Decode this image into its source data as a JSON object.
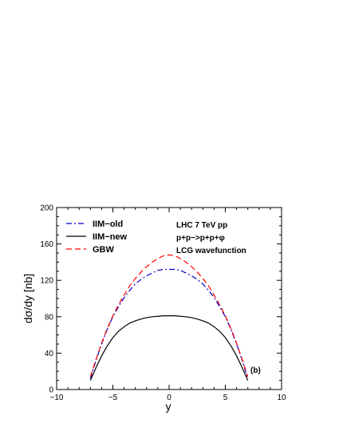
{
  "chart_data": {
    "type": "line",
    "xlabel": "y",
    "ylabel": "dσ/dy [nb]",
    "xlim": [
      -10,
      10
    ],
    "ylim": [
      0,
      200
    ],
    "xticks": [
      -10,
      -5,
      0,
      5,
      10
    ],
    "yticks": [
      0,
      40,
      80,
      120,
      160,
      200
    ],
    "xtick_labels": [
      "−10",
      "−5",
      "0",
      "5",
      "10"
    ],
    "ytick_labels": [
      "0",
      "40",
      "80",
      "120",
      "160",
      "200"
    ],
    "grid": false,
    "legend_position": "top-left",
    "annotations": [
      "LHC 7 TeV pp",
      "p+p−>p+p+φ",
      "LCG wavefunction",
      "(b)"
    ],
    "series": [
      {
        "name": "IIM−old",
        "color": "#0000cc",
        "dash": "dash-dot",
        "x": [
          -7,
          -6.5,
          -6,
          -5.5,
          -5,
          -4.5,
          -4,
          -3.5,
          -3,
          -2.5,
          -2,
          -1.5,
          -1,
          -0.5,
          0,
          0.5,
          1,
          1.5,
          2,
          2.5,
          3,
          3.5,
          4,
          4.5,
          5,
          5.5,
          6,
          6.5,
          7
        ],
        "values": [
          12,
          32,
          50,
          66,
          80,
          91,
          101,
          109,
          116,
          121,
          125,
          128,
          131,
          132,
          132,
          132,
          131,
          128,
          125,
          121,
          116,
          109,
          101,
          91,
          80,
          66,
          50,
          32,
          12
        ]
      },
      {
        "name": "IIM−new",
        "color": "#000000",
        "dash": "solid",
        "x": [
          -7,
          -6.5,
          -6,
          -5.5,
          -5,
          -4.5,
          -4,
          -3.5,
          -3,
          -2.5,
          -2,
          -1.5,
          -1,
          -0.5,
          0,
          0.5,
          1,
          1.5,
          2,
          2.5,
          3,
          3.5,
          4,
          4.5,
          5,
          5.5,
          6,
          6.5,
          7
        ],
        "values": [
          10,
          24,
          37,
          48,
          57,
          64,
          69,
          73,
          75.5,
          77.5,
          79,
          80,
          80.5,
          81,
          81,
          81,
          80.5,
          80,
          79,
          77.5,
          75.5,
          73,
          69,
          64,
          57,
          48,
          37,
          24,
          10
        ]
      },
      {
        "name": "GBW",
        "color": "#ff0000",
        "dash": "dashed",
        "x": [
          -7,
          -6.5,
          -6,
          -5.5,
          -5,
          -4.5,
          -4,
          -3.5,
          -3,
          -2.5,
          -2,
          -1.5,
          -1,
          -0.5,
          0,
          0.5,
          1,
          1.5,
          2,
          2.5,
          3,
          3.5,
          4,
          4.5,
          5,
          5.5,
          6,
          6.5,
          7
        ],
        "values": [
          14,
          33,
          51,
          67,
          81,
          93,
          104,
          114,
          122,
          129,
          135,
          140,
          144,
          147,
          148,
          147,
          144,
          140,
          135,
          129,
          122,
          114,
          104,
          93,
          81,
          67,
          51,
          33,
          14
        ]
      }
    ]
  }
}
